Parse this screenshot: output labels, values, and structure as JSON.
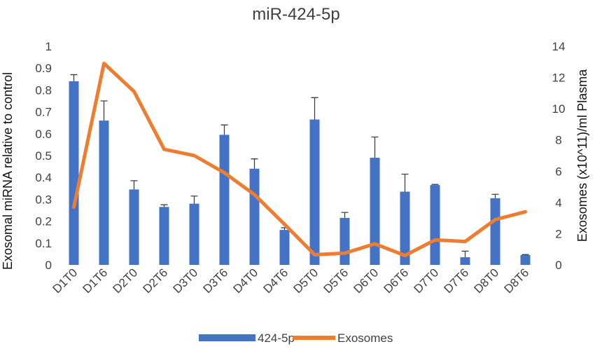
{
  "chart_data": {
    "type": "bar",
    "title": "miR-424-5p",
    "xlabel": "",
    "ylabel": "Exosomal miRNA relative to control",
    "y2label": "Exosomes (x10^11)/ml Plasma",
    "ylim": [
      0,
      1
    ],
    "y2lim": [
      0,
      14
    ],
    "yticks": [
      "0",
      "0.1",
      "0.2",
      "0.3",
      "0.4",
      "0.5",
      "0.6",
      "0.7",
      "0.8",
      "0.9",
      "1"
    ],
    "y2ticks": [
      "0",
      "2",
      "4",
      "6",
      "8",
      "10",
      "12",
      "14"
    ],
    "categories": [
      "D1T0",
      "D1T6",
      "D2T0",
      "D2T6",
      "D3T0",
      "D3T6",
      "D4T0",
      "D4T6",
      "D5T0",
      "D5T6",
      "D6T0",
      "D6T6",
      "D7T0",
      "D7T6",
      "D8T0",
      "D8T6"
    ],
    "grid": false,
    "legend_position": "bottom",
    "series": [
      {
        "name": "424-5p",
        "type": "bar",
        "axis": "left",
        "color": "#4472C4",
        "values": [
          0.84,
          0.66,
          0.345,
          0.265,
          0.28,
          0.595,
          0.44,
          0.16,
          0.665,
          0.215,
          0.49,
          0.335,
          0.365,
          0.035,
          0.305,
          0.045
        ],
        "error": [
          0.03,
          0.09,
          0.04,
          0.01,
          0.035,
          0.045,
          0.045,
          0.01,
          0.1,
          0.025,
          0.095,
          0.08,
          0.003,
          0.028,
          0.018,
          0.002
        ]
      },
      {
        "name": "Exosomes",
        "type": "line",
        "axis": "right",
        "color": "#ED7D31",
        "values": [
          3.7,
          12.9,
          11.1,
          7.4,
          7.0,
          5.9,
          4.5,
          2.6,
          0.65,
          0.75,
          1.35,
          0.6,
          1.6,
          1.5,
          2.9,
          3.4
        ]
      }
    ]
  }
}
